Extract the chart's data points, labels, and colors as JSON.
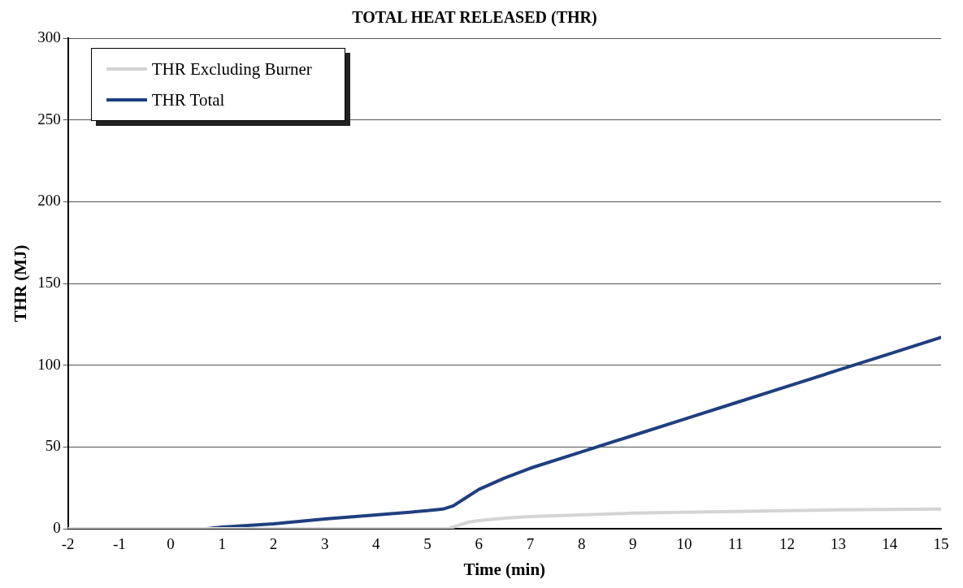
{
  "chart_data": {
    "type": "line",
    "title": "TOTAL HEAT RELEASED (THR)",
    "xlabel": "Time (min)",
    "ylabel": "THR (MJ)",
    "xlim": [
      -2,
      15
    ],
    "xticks": [
      -2,
      -1,
      0,
      1,
      2,
      3,
      4,
      5,
      6,
      7,
      8,
      9,
      10,
      11,
      12,
      13,
      14,
      15
    ],
    "ylim": [
      0,
      300
    ],
    "yticks": [
      0,
      50,
      100,
      150,
      200,
      250,
      300
    ],
    "grid": "y",
    "legend": "top left",
    "marker": "none",
    "series": [
      {
        "name": "THR Excluding Burner",
        "color": "#d4d4d4",
        "x": [
          -2,
          0,
          2,
          4,
          5,
          5.4,
          5.8,
          6,
          6.5,
          7,
          8,
          9,
          10,
          11,
          12,
          13,
          14,
          15
        ],
        "values": [
          0,
          0,
          0,
          0,
          0,
          0,
          4,
          5,
          6.5,
          7.5,
          8.5,
          9.5,
          10,
          10.5,
          11,
          11.5,
          11.8,
          12
        ]
      },
      {
        "name": "THR Total",
        "color": "#1f3f7f",
        "x": [
          -2,
          0,
          0.7,
          1,
          2,
          3,
          4,
          5,
          5.3,
          5.5,
          5.8,
          6,
          6.5,
          7,
          8,
          9,
          10,
          11,
          12,
          13,
          14,
          15
        ],
        "values": [
          0,
          0,
          0,
          1,
          3,
          6,
          8.5,
          11,
          12,
          14,
          20,
          24,
          31,
          37,
          47,
          57,
          67,
          77,
          87,
          97,
          107,
          117
        ]
      }
    ]
  }
}
